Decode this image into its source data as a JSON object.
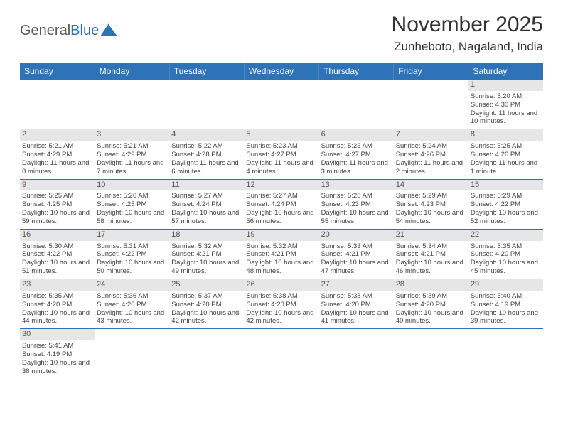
{
  "logo": {
    "text1": "General",
    "text2": "Blue"
  },
  "title": "November 2025",
  "location": "Zunheboto, Nagaland, India",
  "colors": {
    "headerBg": "#2e73b8",
    "dayBg": "#e6e6e6",
    "rowBorder": "#2e73b8"
  },
  "weekdays": [
    "Sunday",
    "Monday",
    "Tuesday",
    "Wednesday",
    "Thursday",
    "Friday",
    "Saturday"
  ],
  "weeks": [
    [
      null,
      null,
      null,
      null,
      null,
      null,
      {
        "n": "1",
        "sr": "Sunrise: 5:20 AM",
        "ss": "Sunset: 4:30 PM",
        "dl": "Daylight: 11 hours and 10 minutes."
      }
    ],
    [
      {
        "n": "2",
        "sr": "Sunrise: 5:21 AM",
        "ss": "Sunset: 4:29 PM",
        "dl": "Daylight: 11 hours and 8 minutes."
      },
      {
        "n": "3",
        "sr": "Sunrise: 5:21 AM",
        "ss": "Sunset: 4:29 PM",
        "dl": "Daylight: 11 hours and 7 minutes."
      },
      {
        "n": "4",
        "sr": "Sunrise: 5:22 AM",
        "ss": "Sunset: 4:28 PM",
        "dl": "Daylight: 11 hours and 6 minutes."
      },
      {
        "n": "5",
        "sr": "Sunrise: 5:23 AM",
        "ss": "Sunset: 4:27 PM",
        "dl": "Daylight: 11 hours and 4 minutes."
      },
      {
        "n": "6",
        "sr": "Sunrise: 5:23 AM",
        "ss": "Sunset: 4:27 PM",
        "dl": "Daylight: 11 hours and 3 minutes."
      },
      {
        "n": "7",
        "sr": "Sunrise: 5:24 AM",
        "ss": "Sunset: 4:26 PM",
        "dl": "Daylight: 11 hours and 2 minutes."
      },
      {
        "n": "8",
        "sr": "Sunrise: 5:25 AM",
        "ss": "Sunset: 4:26 PM",
        "dl": "Daylight: 11 hours and 1 minute."
      }
    ],
    [
      {
        "n": "9",
        "sr": "Sunrise: 5:25 AM",
        "ss": "Sunset: 4:25 PM",
        "dl": "Daylight: 10 hours and 59 minutes."
      },
      {
        "n": "10",
        "sr": "Sunrise: 5:26 AM",
        "ss": "Sunset: 4:25 PM",
        "dl": "Daylight: 10 hours and 58 minutes."
      },
      {
        "n": "11",
        "sr": "Sunrise: 5:27 AM",
        "ss": "Sunset: 4:24 PM",
        "dl": "Daylight: 10 hours and 57 minutes."
      },
      {
        "n": "12",
        "sr": "Sunrise: 5:27 AM",
        "ss": "Sunset: 4:24 PM",
        "dl": "Daylight: 10 hours and 56 minutes."
      },
      {
        "n": "13",
        "sr": "Sunrise: 5:28 AM",
        "ss": "Sunset: 4:23 PM",
        "dl": "Daylight: 10 hours and 55 minutes."
      },
      {
        "n": "14",
        "sr": "Sunrise: 5:29 AM",
        "ss": "Sunset: 4:23 PM",
        "dl": "Daylight: 10 hours and 54 minutes."
      },
      {
        "n": "15",
        "sr": "Sunrise: 5:29 AM",
        "ss": "Sunset: 4:22 PM",
        "dl": "Daylight: 10 hours and 52 minutes."
      }
    ],
    [
      {
        "n": "16",
        "sr": "Sunrise: 5:30 AM",
        "ss": "Sunset: 4:22 PM",
        "dl": "Daylight: 10 hours and 51 minutes."
      },
      {
        "n": "17",
        "sr": "Sunrise: 5:31 AM",
        "ss": "Sunset: 4:22 PM",
        "dl": "Daylight: 10 hours and 50 minutes."
      },
      {
        "n": "18",
        "sr": "Sunrise: 5:32 AM",
        "ss": "Sunset: 4:21 PM",
        "dl": "Daylight: 10 hours and 49 minutes."
      },
      {
        "n": "19",
        "sr": "Sunrise: 5:32 AM",
        "ss": "Sunset: 4:21 PM",
        "dl": "Daylight: 10 hours and 48 minutes."
      },
      {
        "n": "20",
        "sr": "Sunrise: 5:33 AM",
        "ss": "Sunset: 4:21 PM",
        "dl": "Daylight: 10 hours and 47 minutes."
      },
      {
        "n": "21",
        "sr": "Sunrise: 5:34 AM",
        "ss": "Sunset: 4:21 PM",
        "dl": "Daylight: 10 hours and 46 minutes."
      },
      {
        "n": "22",
        "sr": "Sunrise: 5:35 AM",
        "ss": "Sunset: 4:20 PM",
        "dl": "Daylight: 10 hours and 45 minutes."
      }
    ],
    [
      {
        "n": "23",
        "sr": "Sunrise: 5:35 AM",
        "ss": "Sunset: 4:20 PM",
        "dl": "Daylight: 10 hours and 44 minutes."
      },
      {
        "n": "24",
        "sr": "Sunrise: 5:36 AM",
        "ss": "Sunset: 4:20 PM",
        "dl": "Daylight: 10 hours and 43 minutes."
      },
      {
        "n": "25",
        "sr": "Sunrise: 5:37 AM",
        "ss": "Sunset: 4:20 PM",
        "dl": "Daylight: 10 hours and 42 minutes."
      },
      {
        "n": "26",
        "sr": "Sunrise: 5:38 AM",
        "ss": "Sunset: 4:20 PM",
        "dl": "Daylight: 10 hours and 42 minutes."
      },
      {
        "n": "27",
        "sr": "Sunrise: 5:38 AM",
        "ss": "Sunset: 4:20 PM",
        "dl": "Daylight: 10 hours and 41 minutes."
      },
      {
        "n": "28",
        "sr": "Sunrise: 5:39 AM",
        "ss": "Sunset: 4:20 PM",
        "dl": "Daylight: 10 hours and 40 minutes."
      },
      {
        "n": "29",
        "sr": "Sunrise: 5:40 AM",
        "ss": "Sunset: 4:19 PM",
        "dl": "Daylight: 10 hours and 39 minutes."
      }
    ],
    [
      {
        "n": "30",
        "sr": "Sunrise: 5:41 AM",
        "ss": "Sunset: 4:19 PM",
        "dl": "Daylight: 10 hours and 38 minutes."
      },
      null,
      null,
      null,
      null,
      null,
      null
    ]
  ]
}
